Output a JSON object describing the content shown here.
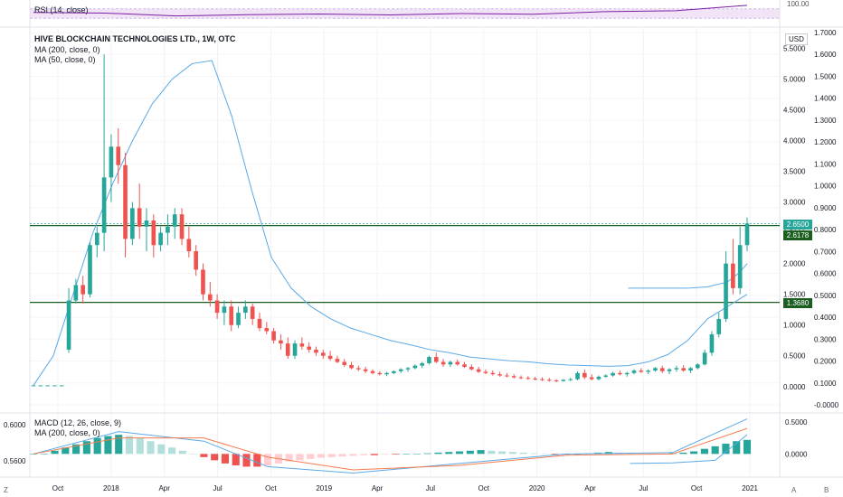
{
  "panes": {
    "rsi": {
      "legend": "RSI (14, close)",
      "right_label": "100.00"
    },
    "main": {
      "legend_title": "HIVE BLOCKCHAIN TECHNOLOGIES LTD., 1W, OTC",
      "legend_ma200": "MA (200, close, 0)",
      "legend_ma50": "MA (50, close, 0)",
      "currency": "USD"
    },
    "macd": {
      "legend": "MACD (12, 26, close, 9)",
      "legend_ma": "MA (200, close, 0)"
    }
  },
  "badges": {
    "last": "2.6500",
    "level_top": "2.6178",
    "level_bottom": "1.3680"
  },
  "colors": {
    "up": "#26a69a",
    "down": "#ef5350",
    "ma": "#5aa9e6",
    "macd_signal": "#f57c4f",
    "level": "#1b5e20",
    "rsi": "#7b1fa2",
    "rsi_band": "#e7d2f2"
  },
  "buttons": {
    "left": "Z",
    "right_a": "A",
    "right_b": "B"
  },
  "chart_data": [
    {
      "type": "candlestick",
      "title": "HIVE BLOCKCHAIN TECHNOLOGIES LTD., 1W, OTC",
      "x_ticks": [
        "Oct",
        "2018",
        "Apr",
        "Jul",
        "Oct",
        "2019",
        "Apr",
        "Jul",
        "Oct",
        "2020",
        "Apr",
        "Jul",
        "Oct",
        "2021"
      ],
      "y_ticks_left": [
        "5.5000",
        "5.0000",
        "4.5000",
        "4.0000",
        "3.5000",
        "3.0000",
        "2.5000",
        "2.0000",
        "1.5000",
        "1.0000",
        "0.5000",
        "0.0000"
      ],
      "y_ticks_right": [
        "1.7000",
        "1.6000",
        "1.5000",
        "1.4000",
        "1.3000",
        "1.2000",
        "1.1000",
        "1.0000",
        "0.9000",
        "0.8000",
        "0.7000",
        "0.6000",
        "0.5000",
        "0.4000",
        "0.3000",
        "0.2000",
        "0.1000",
        "-0.0000"
      ],
      "ylim": [
        -0.4,
        5.8
      ],
      "horizontal_levels": [
        2.6178,
        1.368
      ],
      "last_price": 2.65,
      "series": [
        {
          "name": "MA (200, close, 0)",
          "x": [
            0,
            5,
            10,
            15,
            20,
            25,
            30,
            35,
            40,
            45,
            50,
            55,
            60,
            65,
            70,
            75,
            80,
            85,
            90,
            95,
            100,
            105,
            110,
            115,
            120,
            125,
            130,
            135,
            140,
            145,
            150,
            155,
            160,
            165,
            170,
            175,
            180
          ],
          "values": [
            0.02,
            0.5,
            1.5,
            2.5,
            3.3,
            4.0,
            4.6,
            5.0,
            5.25,
            5.3,
            4.4,
            3.2,
            2.1,
            1.6,
            1.3,
            1.1,
            0.95,
            0.85,
            0.75,
            0.68,
            0.6,
            0.55,
            0.48,
            0.45,
            0.42,
            0.4,
            0.37,
            0.35,
            0.34,
            0.33,
            0.34,
            0.4,
            0.52,
            0.75,
            1.1,
            1.3,
            1.5
          ]
        },
        {
          "name": "MA (50, close, 0)",
          "x": [
            150,
            155,
            160,
            165,
            170,
            175,
            178,
            180
          ],
          "values": [
            1.6,
            1.6,
            1.6,
            1.6,
            1.62,
            1.7,
            1.85,
            2.0
          ]
        }
      ],
      "candles": [
        [
          0.02,
          0.02,
          0.02,
          0.02
        ],
        [
          0.02,
          0.02,
          0.02,
          0.02
        ],
        [
          0.02,
          0.02,
          0.02,
          0.02
        ],
        [
          0.02,
          0.02,
          0.02,
          0.02
        ],
        [
          0.02,
          0.02,
          0.02,
          0.02
        ],
        [
          0.6,
          1.6,
          0.55,
          1.4
        ],
        [
          1.4,
          1.75,
          1.35,
          1.65
        ],
        [
          1.65,
          1.8,
          1.35,
          1.5
        ],
        [
          1.5,
          2.35,
          1.45,
          2.3
        ],
        [
          2.3,
          2.6,
          2.1,
          2.5
        ],
        [
          2.5,
          5.4,
          2.2,
          3.4
        ],
        [
          3.4,
          4.1,
          3.0,
          3.9
        ],
        [
          3.9,
          4.2,
          3.3,
          3.6
        ],
        [
          3.6,
          3.8,
          2.1,
          2.4
        ],
        [
          2.4,
          3.0,
          2.3,
          2.9
        ],
        [
          2.9,
          3.3,
          2.4,
          2.6
        ],
        [
          2.6,
          2.9,
          2.2,
          2.7
        ],
        [
          2.7,
          2.8,
          2.1,
          2.3
        ],
        [
          2.3,
          2.6,
          2.2,
          2.5
        ],
        [
          2.5,
          2.8,
          2.3,
          2.6
        ],
        [
          2.6,
          2.9,
          2.4,
          2.8
        ],
        [
          2.8,
          2.9,
          2.3,
          2.4
        ],
        [
          2.4,
          2.6,
          2.1,
          2.2
        ],
        [
          2.2,
          2.3,
          1.8,
          1.9
        ],
        [
          1.9,
          2.0,
          1.4,
          1.5
        ],
        [
          1.5,
          1.7,
          1.3,
          1.4
        ],
        [
          1.4,
          1.5,
          1.1,
          1.2
        ],
        [
          1.2,
          1.4,
          1.0,
          1.3
        ],
        [
          1.3,
          1.4,
          0.9,
          1.0
        ],
        [
          1.0,
          1.3,
          0.95,
          1.2
        ],
        [
          1.2,
          1.4,
          1.1,
          1.3
        ],
        [
          1.3,
          1.35,
          1.0,
          1.1
        ],
        [
          1.1,
          1.2,
          0.9,
          0.95
        ],
        [
          0.95,
          1.05,
          0.85,
          0.9
        ],
        [
          0.9,
          0.95,
          0.7,
          0.75
        ],
        [
          0.75,
          0.85,
          0.6,
          0.7
        ],
        [
          0.7,
          0.8,
          0.45,
          0.5
        ],
        [
          0.5,
          0.75,
          0.45,
          0.7
        ],
        [
          0.7,
          0.8,
          0.6,
          0.65
        ],
        [
          0.65,
          0.72,
          0.55,
          0.6
        ],
        [
          0.6,
          0.65,
          0.5,
          0.55
        ],
        [
          0.55,
          0.6,
          0.45,
          0.5
        ],
        [
          0.5,
          0.58,
          0.42,
          0.45
        ],
        [
          0.45,
          0.5,
          0.38,
          0.4
        ],
        [
          0.4,
          0.45,
          0.32,
          0.35
        ],
        [
          0.35,
          0.4,
          0.28,
          0.3
        ],
        [
          0.3,
          0.34,
          0.25,
          0.28
        ],
        [
          0.28,
          0.32,
          0.22,
          0.25
        ],
        [
          0.25,
          0.28,
          0.2,
          0.22
        ],
        [
          0.22,
          0.25,
          0.18,
          0.2
        ],
        [
          0.2,
          0.24,
          0.17,
          0.22
        ],
        [
          0.22,
          0.26,
          0.2,
          0.25
        ],
        [
          0.25,
          0.3,
          0.22,
          0.28
        ],
        [
          0.28,
          0.32,
          0.24,
          0.3
        ],
        [
          0.3,
          0.36,
          0.28,
          0.34
        ],
        [
          0.34,
          0.4,
          0.3,
          0.38
        ],
        [
          0.38,
          0.5,
          0.36,
          0.48
        ],
        [
          0.48,
          0.55,
          0.38,
          0.4
        ],
        [
          0.4,
          0.45,
          0.32,
          0.36
        ],
        [
          0.36,
          0.42,
          0.32,
          0.4
        ],
        [
          0.4,
          0.44,
          0.34,
          0.36
        ],
        [
          0.36,
          0.4,
          0.3,
          0.32
        ],
        [
          0.32,
          0.36,
          0.26,
          0.28
        ],
        [
          0.28,
          0.32,
          0.22,
          0.24
        ],
        [
          0.24,
          0.28,
          0.2,
          0.22
        ],
        [
          0.22,
          0.26,
          0.18,
          0.2
        ],
        [
          0.2,
          0.24,
          0.16,
          0.18
        ],
        [
          0.18,
          0.22,
          0.15,
          0.17
        ],
        [
          0.17,
          0.2,
          0.13,
          0.15
        ],
        [
          0.15,
          0.18,
          0.12,
          0.14
        ],
        [
          0.14,
          0.17,
          0.11,
          0.13
        ],
        [
          0.13,
          0.16,
          0.1,
          0.12
        ],
        [
          0.12,
          0.15,
          0.09,
          0.11
        ],
        [
          0.11,
          0.14,
          0.08,
          0.1
        ],
        [
          0.1,
          0.12,
          0.07,
          0.09
        ],
        [
          0.09,
          0.12,
          0.08,
          0.11
        ],
        [
          0.11,
          0.14,
          0.09,
          0.12
        ],
        [
          0.12,
          0.25,
          0.1,
          0.22
        ],
        [
          0.22,
          0.28,
          0.12,
          0.15
        ],
        [
          0.15,
          0.2,
          0.1,
          0.12
        ],
        [
          0.12,
          0.18,
          0.1,
          0.16
        ],
        [
          0.16,
          0.2,
          0.14,
          0.18
        ],
        [
          0.18,
          0.24,
          0.16,
          0.22
        ],
        [
          0.22,
          0.26,
          0.18,
          0.2
        ],
        [
          0.2,
          0.24,
          0.16,
          0.22
        ],
        [
          0.22,
          0.28,
          0.2,
          0.26
        ],
        [
          0.26,
          0.3,
          0.22,
          0.24
        ],
        [
          0.24,
          0.28,
          0.2,
          0.26
        ],
        [
          0.26,
          0.32,
          0.24,
          0.3
        ],
        [
          0.3,
          0.34,
          0.22,
          0.25
        ],
        [
          0.25,
          0.3,
          0.2,
          0.28
        ],
        [
          0.28,
          0.34,
          0.24,
          0.3
        ],
        [
          0.3,
          0.35,
          0.24,
          0.26
        ],
        [
          0.26,
          0.32,
          0.22,
          0.3
        ],
        [
          0.3,
          0.38,
          0.28,
          0.36
        ],
        [
          0.36,
          0.6,
          0.34,
          0.55
        ],
        [
          0.55,
          0.9,
          0.5,
          0.85
        ],
        [
          0.85,
          1.2,
          0.8,
          1.1
        ],
        [
          1.1,
          2.2,
          1.05,
          2.0
        ],
        [
          2.0,
          2.4,
          1.5,
          1.6
        ],
        [
          1.6,
          2.6,
          1.5,
          2.3
        ],
        [
          2.3,
          2.75,
          2.2,
          2.65
        ]
      ]
    },
    {
      "type": "line",
      "title": "RSI (14, close)",
      "ylim": [
        0,
        100
      ],
      "series": [
        {
          "name": "RSI (14, close)",
          "x": [
            0,
            10,
            20,
            30,
            40,
            50,
            60,
            70,
            80,
            90,
            100
          ],
          "values": [
            55,
            52,
            40,
            45,
            48,
            44,
            50,
            47,
            58,
            62,
            85
          ]
        }
      ]
    },
    {
      "type": "bar",
      "title": "MACD (12, 26, close, 9)",
      "y_ticks": [
        "0.5000",
        "0.0000"
      ],
      "y_ticks_left": [
        "0.6000",
        "0.5600"
      ],
      "ylim": [
        -0.35,
        0.6
      ],
      "histogram": [
        0.0,
        0.0,
        0.05,
        0.1,
        0.15,
        0.2,
        0.25,
        0.28,
        0.3,
        0.28,
        0.25,
        0.2,
        0.15,
        0.1,
        0.05,
        0.0,
        -0.05,
        -0.1,
        -0.15,
        -0.18,
        -0.2,
        -0.2,
        -0.18,
        -0.15,
        -0.12,
        -0.1,
        -0.08,
        -0.06,
        -0.05,
        -0.04,
        -0.03,
        -0.02,
        -0.02,
        -0.01,
        -0.01,
        0.0,
        0.0,
        0.01,
        0.02,
        0.03,
        0.04,
        0.05,
        0.06,
        0.05,
        0.04,
        0.03,
        0.02,
        0.01,
        0.0,
        -0.01,
        -0.01,
        0.0,
        0.01,
        0.02,
        0.03,
        0.02,
        0.01,
        0.0,
        0.0,
        0.0,
        0.01,
        0.02,
        0.04,
        0.08,
        0.12,
        0.16,
        0.2,
        0.22
      ],
      "series": [
        {
          "name": "MACD (12, 26, close, 9)",
          "x": [
            0,
            8,
            16,
            22,
            30,
            40,
            50,
            60,
            67
          ],
          "values": [
            0.0,
            0.35,
            0.2,
            -0.2,
            -0.3,
            -0.15,
            0.0,
            0.02,
            0.55
          ]
        },
        {
          "name": "Signal",
          "x": [
            0,
            8,
            16,
            22,
            30,
            40,
            50,
            60,
            67
          ],
          "values": [
            0.0,
            0.25,
            0.25,
            -0.05,
            -0.25,
            -0.18,
            -0.02,
            0.0,
            0.4
          ]
        },
        {
          "name": "MA (200, close, 0)",
          "x": [
            56,
            60,
            64,
            67
          ],
          "values": [
            -0.15,
            -0.14,
            -0.1,
            0.3
          ]
        }
      ]
    }
  ]
}
